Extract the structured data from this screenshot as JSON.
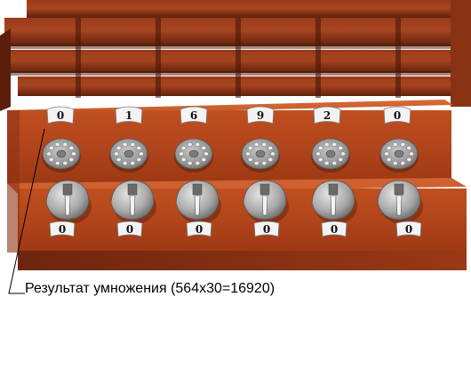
{
  "result_digits": [
    "0",
    "1",
    "6",
    "9",
    "2",
    "0"
  ],
  "setting_digits": [
    "0",
    "0",
    "0",
    "0",
    "0",
    "0"
  ],
  "caption": "Результат умножения (564x30=16920)",
  "colors": {
    "wood": "#b8451f",
    "wood_dark": "#7a2c12",
    "wood_light": "#d0602e",
    "metal": "#9a9a9a",
    "label_bg": "#f4f4f4"
  },
  "icons": [
    "pinwheel-dial-icon",
    "setting-lever-knob-icon"
  ]
}
